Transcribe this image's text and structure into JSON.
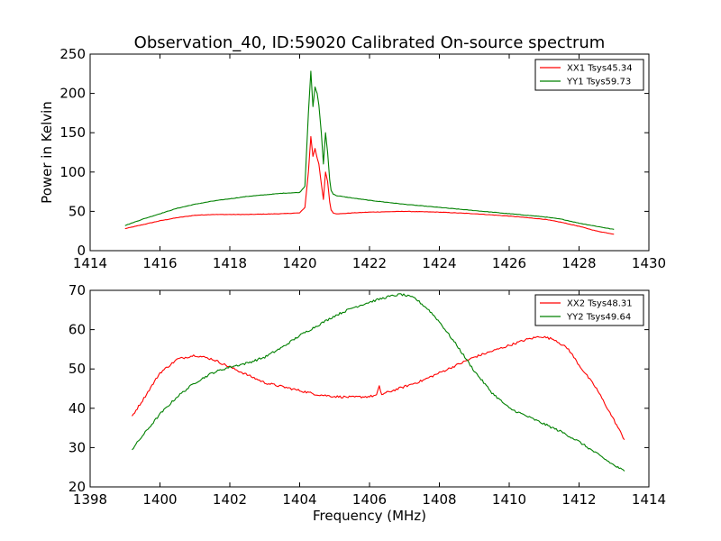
{
  "figure": {
    "title": "Observation_40, ID:59020 Calibrated On-source spectrum",
    "background": "#ffffff"
  },
  "chart_data": [
    {
      "type": "line",
      "xlim": [
        1414,
        1430
      ],
      "ylim": [
        0,
        250
      ],
      "xticks": [
        1414,
        1416,
        1418,
        1420,
        1422,
        1424,
        1426,
        1428,
        1430
      ],
      "yticks": [
        0,
        50,
        100,
        150,
        200,
        250
      ],
      "xlabel": "",
      "ylabel": "Power in Kelvin",
      "grid": false,
      "legend_position": "top-right",
      "series": [
        {
          "name": "XX1 Tsys45.34",
          "color": "#ff0000",
          "x": [
            1415.0,
            1415.5,
            1416.0,
            1416.5,
            1417.0,
            1417.5,
            1418.0,
            1418.5,
            1419.0,
            1419.5,
            1420.0,
            1420.15,
            1420.25,
            1420.32,
            1420.38,
            1420.44,
            1420.5,
            1420.55,
            1420.62,
            1420.68,
            1420.74,
            1420.8,
            1420.86,
            1420.9,
            1420.96,
            1421.05,
            1421.2,
            1421.5,
            1422.0,
            1423.0,
            1424.0,
            1425.0,
            1426.0,
            1426.5,
            1427.0,
            1427.5,
            1428.0,
            1428.5,
            1429.0
          ],
          "y": [
            28,
            33,
            38,
            42,
            45,
            46,
            46,
            46,
            46.5,
            47,
            48,
            55,
            100,
            145,
            120,
            130,
            118,
            110,
            85,
            65,
            100,
            88,
            62,
            52,
            48,
            47,
            47,
            48,
            49,
            50,
            49,
            47,
            44,
            42,
            40,
            36,
            31,
            25,
            21
          ]
        },
        {
          "name": "YY1 Tsys59.73",
          "color": "#008000",
          "x": [
            1415.0,
            1415.5,
            1416.0,
            1416.5,
            1417.0,
            1417.5,
            1418.0,
            1418.5,
            1419.0,
            1419.5,
            1420.0,
            1420.15,
            1420.25,
            1420.32,
            1420.38,
            1420.44,
            1420.5,
            1420.55,
            1420.62,
            1420.68,
            1420.74,
            1420.8,
            1420.86,
            1420.9,
            1420.96,
            1421.05,
            1421.2,
            1421.5,
            1422.0,
            1423.0,
            1424.0,
            1425.0,
            1426.0,
            1426.5,
            1427.0,
            1427.5,
            1428.0,
            1428.5,
            1429.0
          ],
          "y": [
            32,
            40,
            47,
            54,
            59,
            63,
            66,
            69,
            71,
            73,
            74,
            82,
            175,
            228,
            183,
            208,
            200,
            185,
            150,
            110,
            150,
            125,
            90,
            77,
            72,
            70,
            69,
            67,
            64,
            59,
            55,
            51,
            47,
            45,
            43,
            40,
            35,
            31,
            27
          ]
        }
      ]
    },
    {
      "type": "line",
      "xlim": [
        1398,
        1414
      ],
      "ylim": [
        20,
        70
      ],
      "xticks": [
        1398,
        1400,
        1402,
        1404,
        1406,
        1408,
        1410,
        1412,
        1414
      ],
      "yticks": [
        20,
        30,
        40,
        50,
        60,
        70
      ],
      "xlabel": "Frequency (MHz)",
      "ylabel": "",
      "grid": false,
      "legend_position": "top-right",
      "series": [
        {
          "name": "XX2 Tsys48.31",
          "color": "#ff0000",
          "x": [
            1399.2,
            1399.5,
            1400.0,
            1400.5,
            1401.0,
            1401.5,
            1402.0,
            1402.5,
            1403.0,
            1403.5,
            1404.0,
            1404.5,
            1405.0,
            1405.5,
            1406.0,
            1406.2,
            1406.28,
            1406.35,
            1406.5,
            1407.0,
            1407.5,
            1408.0,
            1408.5,
            1409.0,
            1409.5,
            1410.0,
            1410.5,
            1410.9,
            1411.3,
            1411.7,
            1412.0,
            1412.5,
            1413.0,
            1413.3
          ],
          "y": [
            38,
            42,
            49,
            52.5,
            53.5,
            52.5,
            50.5,
            48.5,
            46.5,
            45.5,
            44.5,
            43.5,
            43,
            42.8,
            43,
            43.3,
            45.5,
            43.5,
            44,
            45.5,
            47,
            49,
            51,
            53,
            54.5,
            56,
            57.5,
            58.3,
            57.5,
            55,
            51,
            45,
            37,
            32
          ]
        },
        {
          "name": "YY2 Tsys49.64",
          "color": "#008000",
          "x": [
            1399.2,
            1399.5,
            1400.0,
            1400.5,
            1401.0,
            1401.5,
            1402.0,
            1402.5,
            1403.0,
            1403.5,
            1404.0,
            1404.5,
            1405.0,
            1405.5,
            1406.0,
            1406.5,
            1406.9,
            1407.3,
            1407.7,
            1408.0,
            1408.5,
            1409.0,
            1409.5,
            1410.0,
            1410.5,
            1411.0,
            1411.5,
            1412.0,
            1412.5,
            1413.0,
            1413.3
          ],
          "y": [
            29.5,
            33,
            38.5,
            43,
            46.5,
            49,
            50.5,
            51.5,
            53,
            55.5,
            58.5,
            61,
            63.5,
            65.5,
            67,
            68.3,
            69,
            68,
            65,
            62,
            56,
            49.5,
            44,
            40,
            38,
            36,
            34,
            31.5,
            28.5,
            25.5,
            24
          ]
        }
      ]
    }
  ]
}
